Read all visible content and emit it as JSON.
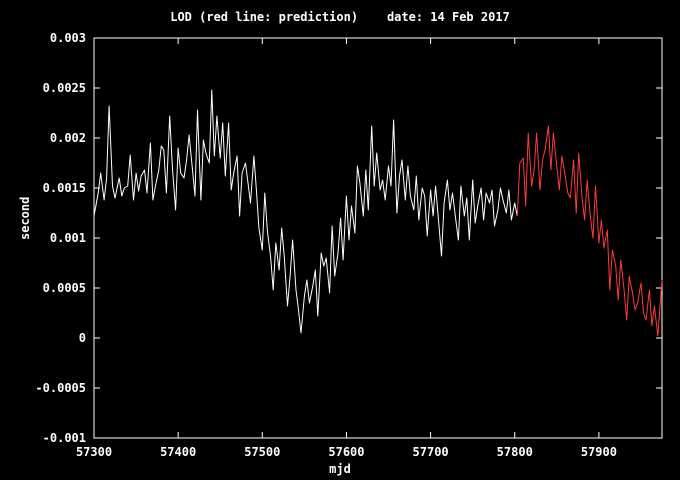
{
  "chart_data": {
    "type": "line",
    "title": "LOD (red line: prediction)    date: 14 Feb 2017",
    "xlabel": "mjd",
    "ylabel": "second",
    "xlim": [
      57300,
      57975
    ],
    "ylim": [
      -0.001,
      0.003
    ],
    "x_ticks": [
      "57300",
      "57400",
      "57500",
      "57600",
      "57700",
      "57800",
      "57900"
    ],
    "y_ticks": [
      "-0.001",
      "-0.0005",
      "0",
      "0.0005",
      "0.001",
      "0.0015",
      "0.002",
      "0.0025",
      "0.003"
    ],
    "grid": false,
    "colors": {
      "observed": "#ffffff",
      "prediction": "#ff3a3a",
      "axes": "#ffffff",
      "background": "#000000"
    },
    "series": [
      {
        "x": [
          57300,
          57305,
          57308,
          57312,
          57315,
          57318,
          57322,
          57325,
          57330,
          57333,
          57336,
          57340,
          57343,
          57347,
          57350,
          57353,
          57356,
          57360,
          57363,
          57367,
          57370,
          57373,
          57377,
          57380,
          57383,
          57386,
          57390,
          57393,
          57397,
          57400,
          57403,
          57407,
          57410,
          57413,
          57417,
          57420,
          57423,
          57427,
          57430,
          57433,
          57437,
          57440,
          57443,
          57446,
          57450,
          57453,
          57456,
          57460,
          57463,
          57466,
          57470,
          57473,
          57476,
          57480,
          57483,
          57486,
          57490,
          57493,
          57496,
          57500,
          57503,
          57506,
          57510,
          57513,
          57516,
          57520,
          57523,
          57526,
          57530,
          57533,
          57536,
          57540,
          57543,
          57546,
          57550,
          57553,
          57556,
          57560,
          57563,
          57566,
          57570,
          57573,
          57576,
          57580,
          57583,
          57586,
          57590,
          57593,
          57596,
          57600,
          57603,
          57606,
          57610,
          57613,
          57616,
          57620,
          57623,
          57626,
          57630,
          57633,
          57636,
          57640,
          57643,
          57646,
          57650,
          57653,
          57656,
          57660,
          57663,
          57666,
          57670,
          57673,
          57676,
          57680,
          57683,
          57686,
          57690,
          57693,
          57696,
          57700,
          57703,
          57706,
          57710,
          57713,
          57716,
          57720,
          57723,
          57726,
          57730,
          57733,
          57736,
          57740,
          57743,
          57746,
          57750,
          57753,
          57756,
          57760,
          57763,
          57766,
          57770,
          57773,
          57776,
          57780,
          57783,
          57786,
          57790,
          57793,
          57796,
          57800,
          57803
        ],
        "values": [
          0.00122,
          0.00145,
          0.00165,
          0.00138,
          0.0016,
          0.00232,
          0.00152,
          0.0014,
          0.0016,
          0.00142,
          0.0015,
          0.00152,
          0.00183,
          0.00138,
          0.00165,
          0.00147,
          0.00162,
          0.00168,
          0.00145,
          0.00195,
          0.00138,
          0.00152,
          0.00168,
          0.00192,
          0.00188,
          0.00145,
          0.00222,
          0.00172,
          0.00128,
          0.0019,
          0.00165,
          0.0016,
          0.00178,
          0.00203,
          0.00168,
          0.00142,
          0.00228,
          0.00138,
          0.00198,
          0.00185,
          0.00175,
          0.00248,
          0.00182,
          0.00222,
          0.0018,
          0.00215,
          0.00162,
          0.00215,
          0.00148,
          0.00165,
          0.00182,
          0.00122,
          0.00165,
          0.00175,
          0.00155,
          0.00135,
          0.00182,
          0.00148,
          0.0011,
          0.00088,
          0.00145,
          0.00108,
          0.0008,
          0.00048,
          0.00095,
          0.00068,
          0.0011,
          0.00082,
          0.00032,
          0.00062,
          0.00098,
          0.00048,
          0.00028,
          5e-05,
          0.00042,
          0.00058,
          0.00035,
          0.00052,
          0.00068,
          0.00022,
          0.00085,
          0.00072,
          0.0008,
          0.00045,
          0.00112,
          0.00062,
          0.00085,
          0.0012,
          0.00078,
          0.00142,
          0.00098,
          0.00132,
          0.00105,
          0.00172,
          0.00155,
          0.00122,
          0.00168,
          0.00128,
          0.00212,
          0.00152,
          0.00185,
          0.00148,
          0.00158,
          0.00138,
          0.00172,
          0.00152,
          0.00218,
          0.00125,
          0.00162,
          0.00178,
          0.00138,
          0.00172,
          0.00142,
          0.00128,
          0.00162,
          0.00118,
          0.0015,
          0.00142,
          0.00102,
          0.00148,
          0.00122,
          0.00152,
          0.00112,
          0.00082,
          0.00135,
          0.00158,
          0.00128,
          0.00145,
          0.00118,
          0.00098,
          0.00152,
          0.00122,
          0.0014,
          0.00098,
          0.00158,
          0.00115,
          0.00132,
          0.0015,
          0.00118,
          0.00145,
          0.00135,
          0.00148,
          0.00112,
          0.00128,
          0.0015,
          0.00138,
          0.00125,
          0.00148,
          0.00118,
          0.00135,
          0.00122
        ],
        "color": "#ffffff"
      },
      {
        "x": [
          57803,
          57806,
          57810,
          57813,
          57816,
          57820,
          57823,
          57826,
          57830,
          57833,
          57836,
          57840,
          57843,
          57846,
          57850,
          57853,
          57856,
          57860,
          57863,
          57866,
          57870,
          57873,
          57876,
          57880,
          57883,
          57886,
          57890,
          57893,
          57896,
          57900,
          57903,
          57906,
          57910,
          57913,
          57916,
          57920,
          57923,
          57926,
          57930,
          57933,
          57936,
          57940,
          57943,
          57946,
          57950,
          57953,
          57956,
          57960,
          57963,
          57966,
          57970,
          57975
        ],
        "values": [
          0.00122,
          0.00175,
          0.0018,
          0.00132,
          0.00205,
          0.00152,
          0.00168,
          0.00205,
          0.00148,
          0.00178,
          0.00188,
          0.00212,
          0.00168,
          0.00205,
          0.00172,
          0.00148,
          0.00182,
          0.00162,
          0.00145,
          0.0014,
          0.00178,
          0.00125,
          0.00185,
          0.0014,
          0.00118,
          0.00158,
          0.0012,
          0.001,
          0.00152,
          0.00095,
          0.00118,
          0.0009,
          0.00108,
          0.00048,
          0.00088,
          0.00072,
          0.00038,
          0.00078,
          0.00048,
          0.00018,
          0.00062,
          0.00045,
          0.00028,
          0.00035,
          0.00055,
          0.00025,
          0.00018,
          0.00048,
          0.00012,
          0.00032,
          2e-05,
          0.00058
        ],
        "color": "#ff3a3a"
      }
    ]
  }
}
